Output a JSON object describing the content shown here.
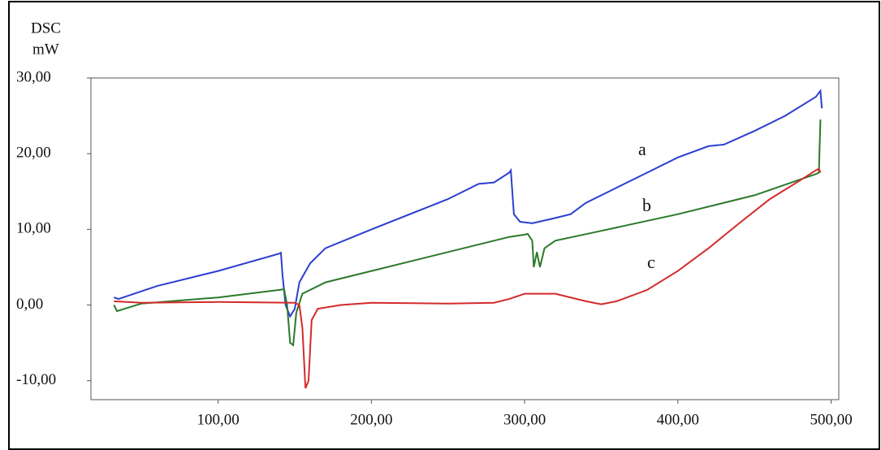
{
  "chart_data": {
    "type": "line",
    "y_label_lines": [
      "DSC",
      "mW"
    ],
    "xlim": [
      17,
      505
    ],
    "ylim": [
      -12.5,
      30
    ],
    "xticks": [
      {
        "value": 100,
        "label": "100,00"
      },
      {
        "value": 200,
        "label": "200,00"
      },
      {
        "value": 300,
        "label": "300,00"
      },
      {
        "value": 400,
        "label": "400,00"
      },
      {
        "value": 500,
        "label": "500,00"
      }
    ],
    "yticks": [
      {
        "value": -10,
        "label": "-10,00"
      },
      {
        "value": 0,
        "label": "0,00"
      },
      {
        "value": 10,
        "label": "10,00"
      },
      {
        "value": 20,
        "label": "20,00"
      },
      {
        "value": 30,
        "label": "30,00"
      }
    ],
    "series": [
      {
        "name": "a",
        "color": "#2b3fd0",
        "x": [
          32,
          35,
          60,
          100,
          140,
          141,
          142,
          144,
          147,
          150,
          153,
          160,
          170,
          200,
          250,
          270,
          280,
          290,
          291,
          293,
          297,
          305,
          320,
          330,
          340,
          360,
          380,
          400,
          420,
          430,
          450,
          470,
          490,
          493,
          494
        ],
        "values": [
          1,
          0.8,
          2.5,
          4.5,
          6.8,
          6.9,
          4,
          0,
          -1.5,
          -0.5,
          3,
          5.5,
          7.5,
          10,
          14,
          16,
          16.2,
          17.5,
          17.8,
          12,
          11,
          10.8,
          11.5,
          12,
          13.5,
          15.5,
          17.5,
          19.5,
          21,
          21.2,
          23,
          25,
          27.5,
          28.3,
          26
        ]
      },
      {
        "name": "b",
        "color": "#2a7a2a",
        "x": [
          32,
          34,
          50,
          100,
          140,
          143,
          145,
          147,
          149,
          151,
          155,
          170,
          200,
          250,
          290,
          300,
          302,
          305,
          306,
          308,
          310,
          313,
          320,
          350,
          400,
          450,
          490,
          492,
          493
        ],
        "values": [
          0,
          -0.8,
          0.2,
          1,
          2,
          2.1,
          0,
          -5,
          -5.3,
          -1,
          1.5,
          3,
          4.5,
          7,
          9,
          9.3,
          9.4,
          8.5,
          5,
          7,
          5,
          7.5,
          8.5,
          9.8,
          12,
          14.5,
          17.3,
          17.5,
          24.5
        ]
      },
      {
        "name": "c",
        "color": "#d42a2a",
        "x": [
          32,
          50,
          100,
          150,
          153,
          155,
          157,
          159,
          161,
          165,
          180,
          200,
          250,
          280,
          290,
          300,
          320,
          340,
          350,
          360,
          380,
          400,
          420,
          440,
          460,
          480,
          490,
          492,
          493
        ],
        "values": [
          0.5,
          0.3,
          0.4,
          0.3,
          0,
          -3,
          -11,
          -10,
          -2,
          -0.5,
          0,
          0.3,
          0.2,
          0.3,
          0.8,
          1.5,
          1.5,
          0.5,
          0.1,
          0.5,
          2,
          4.5,
          7.5,
          10.8,
          14,
          16.5,
          17.8,
          18,
          17.5
        ]
      }
    ]
  }
}
